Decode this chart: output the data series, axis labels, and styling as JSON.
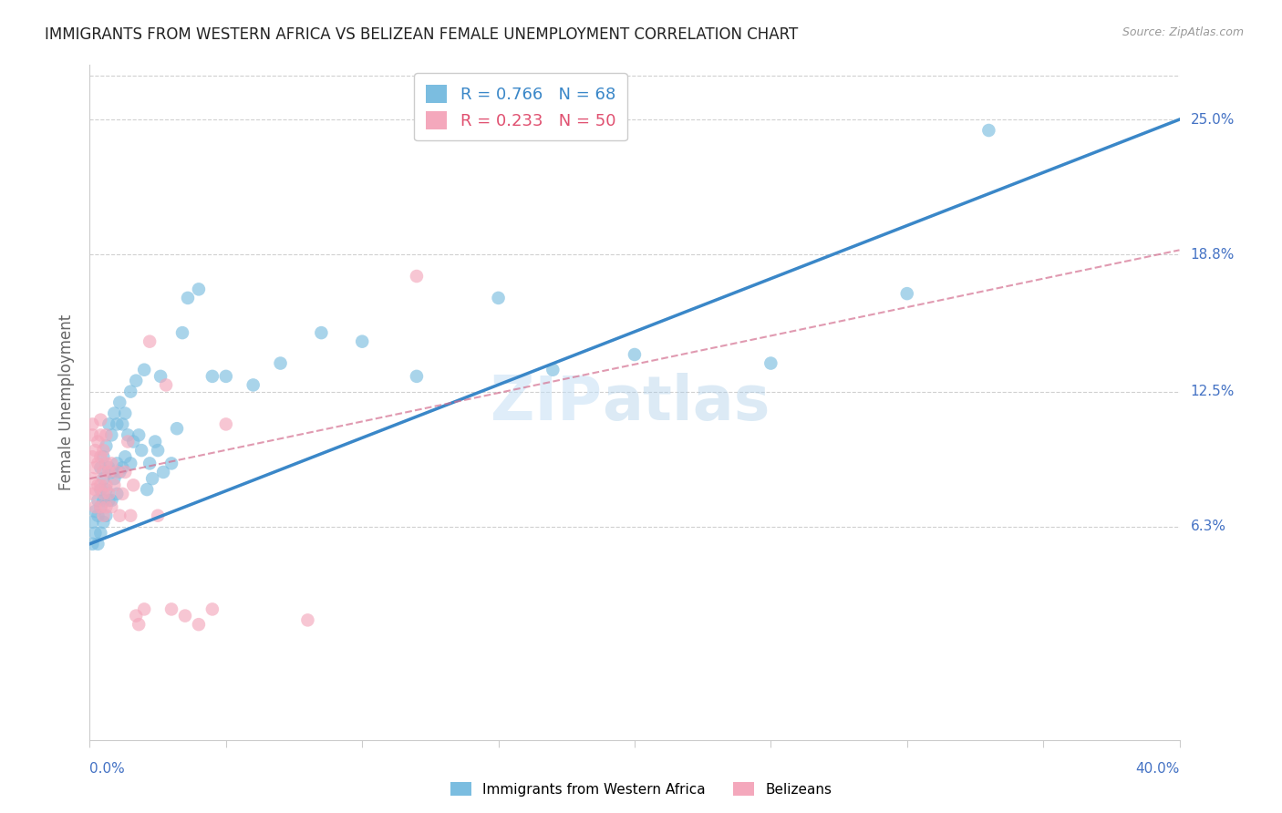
{
  "title": "IMMIGRANTS FROM WESTERN AFRICA VS BELIZEAN FEMALE UNEMPLOYMENT CORRELATION CHART",
  "source": "Source: ZipAtlas.com",
  "ylabel": "Female Unemployment",
  "y_ticks": [
    6.3,
    12.5,
    18.8,
    25.0
  ],
  "x_min": 0.0,
  "x_max": 0.4,
  "y_min": -3.5,
  "y_max": 27.5,
  "series1_label": "Immigrants from Western Africa",
  "series1_color": "#7bbde0",
  "series1_line_color": "#3a87c8",
  "series1_R": 0.766,
  "series1_N": 68,
  "series2_label": "Belizeans",
  "series2_color": "#f4a8bc",
  "series2_line_color": "#d47090",
  "series2_R": 0.233,
  "series2_N": 50,
  "background_color": "#ffffff",
  "grid_color": "#d0d0d0",
  "tick_label_color": "#4472c4",
  "series1_scatter_x": [
    0.001,
    0.001,
    0.002,
    0.002,
    0.003,
    0.003,
    0.003,
    0.004,
    0.004,
    0.004,
    0.004,
    0.005,
    0.005,
    0.005,
    0.005,
    0.006,
    0.006,
    0.006,
    0.007,
    0.007,
    0.007,
    0.008,
    0.008,
    0.008,
    0.009,
    0.009,
    0.01,
    0.01,
    0.01,
    0.011,
    0.011,
    0.012,
    0.012,
    0.013,
    0.013,
    0.014,
    0.015,
    0.015,
    0.016,
    0.017,
    0.018,
    0.019,
    0.02,
    0.021,
    0.022,
    0.023,
    0.024,
    0.025,
    0.026,
    0.027,
    0.03,
    0.032,
    0.034,
    0.036,
    0.04,
    0.045,
    0.05,
    0.06,
    0.07,
    0.085,
    0.1,
    0.12,
    0.15,
    0.17,
    0.2,
    0.25,
    0.3,
    0.33
  ],
  "series1_scatter_y": [
    5.5,
    6.5,
    6.0,
    7.0,
    5.5,
    6.8,
    7.5,
    6.0,
    7.2,
    8.0,
    9.0,
    6.5,
    7.5,
    8.5,
    9.5,
    6.8,
    8.0,
    10.0,
    7.5,
    9.0,
    11.0,
    7.5,
    8.8,
    10.5,
    8.5,
    11.5,
    7.8,
    9.2,
    11.0,
    8.8,
    12.0,
    9.0,
    11.0,
    9.5,
    11.5,
    10.5,
    9.2,
    12.5,
    10.2,
    13.0,
    10.5,
    9.8,
    13.5,
    8.0,
    9.2,
    8.5,
    10.2,
    9.8,
    13.2,
    8.8,
    9.2,
    10.8,
    15.2,
    16.8,
    17.2,
    13.2,
    13.2,
    12.8,
    13.8,
    15.2,
    14.8,
    13.2,
    16.8,
    13.5,
    14.2,
    13.8,
    17.0,
    24.5
  ],
  "series2_scatter_x": [
    0.001,
    0.001,
    0.001,
    0.001,
    0.001,
    0.002,
    0.002,
    0.002,
    0.002,
    0.003,
    0.003,
    0.003,
    0.004,
    0.004,
    0.004,
    0.004,
    0.004,
    0.005,
    0.005,
    0.005,
    0.005,
    0.006,
    0.006,
    0.006,
    0.006,
    0.007,
    0.007,
    0.008,
    0.008,
    0.009,
    0.01,
    0.011,
    0.012,
    0.013,
    0.014,
    0.015,
    0.016,
    0.017,
    0.018,
    0.02,
    0.022,
    0.025,
    0.028,
    0.03,
    0.035,
    0.04,
    0.045,
    0.05,
    0.08,
    0.12
  ],
  "series2_scatter_y": [
    9.5,
    10.5,
    7.8,
    8.5,
    11.0,
    8.0,
    9.0,
    9.8,
    7.2,
    8.2,
    9.2,
    10.2,
    7.2,
    8.2,
    9.5,
    10.5,
    11.2,
    6.8,
    7.8,
    8.8,
    9.8,
    7.2,
    8.2,
    9.2,
    10.5,
    7.8,
    8.8,
    7.2,
    9.2,
    8.2,
    8.8,
    6.8,
    7.8,
    8.8,
    10.2,
    6.8,
    8.2,
    2.2,
    1.8,
    2.5,
    14.8,
    6.8,
    12.8,
    2.5,
    2.2,
    1.8,
    2.5,
    11.0,
    2.0,
    17.8
  ]
}
